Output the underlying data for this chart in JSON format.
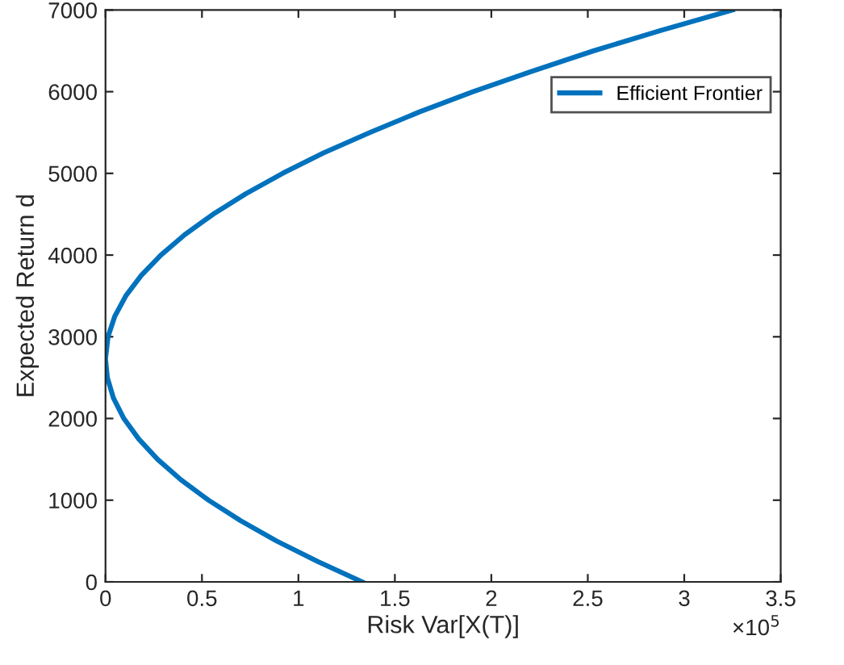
{
  "chart_data": {
    "type": "line",
    "xlabel": "Risk Var[X(T)]",
    "ylabel": "Expected Return d",
    "x": [
      1.33,
      1.1,
      0.887,
      0.7,
      0.534,
      0.391,
      0.27,
      0.172,
      0.095,
      0.041,
      0.0095,
      0,
      0.013,
      0.048,
      0.105,
      0.185,
      0.287,
      0.411,
      0.558,
      0.727,
      0.918,
      1.13,
      1.37,
      1.625,
      1.905,
      2.21,
      2.53,
      2.88,
      3.25
    ],
    "series": [
      {
        "name": "Efficient Frontier",
        "color": "#0072bd",
        "values": [
          0,
          250,
          500,
          750,
          1000,
          1250,
          1500,
          1750,
          2000,
          2250,
          2500,
          2730,
          3000,
          3250,
          3500,
          3750,
          4000,
          4250,
          4500,
          4750,
          5000,
          5250,
          5500,
          5750,
          6000,
          6250,
          6500,
          6750,
          7000
        ]
      }
    ],
    "xlim": [
      0,
      3.5
    ],
    "xticks": [
      0,
      0.5,
      1,
      1.5,
      2,
      2.5,
      3,
      3.5
    ],
    "ylim": [
      0,
      7000
    ],
    "yticks": [
      0,
      1000,
      2000,
      3000,
      4000,
      5000,
      6000,
      7000
    ],
    "annotations": [
      "×10$^{5}$"
    ],
    "legend": "top right",
    "grid": false,
    "marker": "none",
    "line_style": "solid"
  }
}
